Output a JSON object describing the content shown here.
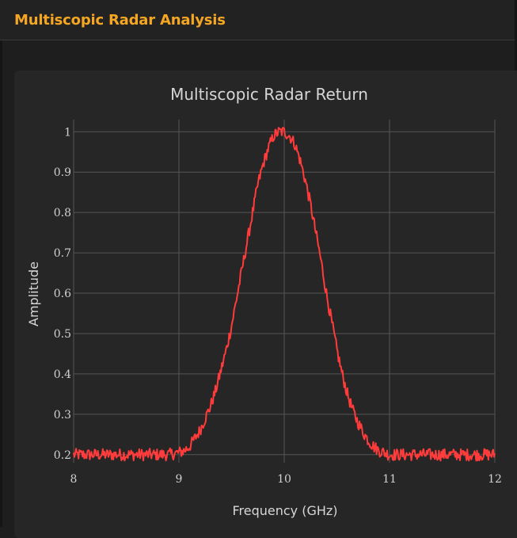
{
  "header": {
    "title": "Multiscopic Radar Analysis"
  },
  "colors": {
    "accent": "#f5a623",
    "line": "#ff3b3b",
    "grid": "#555555",
    "background": "#1e1e1e",
    "card": "#262626"
  },
  "chart_data": {
    "type": "line",
    "title": "Multiscopic Radar Return",
    "xlabel": "Frequency (GHz)",
    "ylabel": "Amplitude",
    "xlim": [
      8,
      12
    ],
    "ylim": [
      0.18,
      1.03
    ],
    "x_ticks": [
      8,
      9,
      10,
      11,
      12
    ],
    "y_ticks": [
      0.2,
      0.3,
      0.4,
      0.5,
      0.6,
      0.7,
      0.8,
      0.9,
      1
    ],
    "grid": true,
    "legend": "none",
    "series": [
      {
        "x": [
          8.0,
          8.1,
          8.2,
          8.3,
          8.4,
          8.5,
          8.6,
          8.7,
          8.8,
          8.9,
          9.0,
          9.05,
          9.1,
          9.15,
          9.2,
          9.25,
          9.3,
          9.35,
          9.4,
          9.45,
          9.5,
          9.55,
          9.6,
          9.65,
          9.7,
          9.75,
          9.8,
          9.85,
          9.9,
          9.95,
          10.0,
          10.05,
          10.1,
          10.15,
          10.2,
          10.25,
          10.3,
          10.35,
          10.4,
          10.45,
          10.5,
          10.55,
          10.6,
          10.65,
          10.7,
          10.75,
          10.8,
          10.85,
          10.9,
          10.95,
          11.0,
          11.1,
          11.2,
          11.3,
          11.4,
          11.5,
          11.6,
          11.7,
          11.8,
          11.9,
          12.0
        ],
        "y": [
          0.2,
          0.2,
          0.2,
          0.2,
          0.2,
          0.2,
          0.2,
          0.2,
          0.2,
          0.2,
          0.205,
          0.21,
          0.22,
          0.24,
          0.26,
          0.29,
          0.32,
          0.36,
          0.41,
          0.46,
          0.52,
          0.59,
          0.66,
          0.73,
          0.8,
          0.87,
          0.92,
          0.96,
          0.99,
          1.0,
          1.0,
          0.99,
          0.97,
          0.93,
          0.88,
          0.82,
          0.75,
          0.68,
          0.6,
          0.53,
          0.46,
          0.4,
          0.35,
          0.31,
          0.28,
          0.255,
          0.235,
          0.22,
          0.21,
          0.205,
          0.2,
          0.2,
          0.2,
          0.2,
          0.2,
          0.2,
          0.2,
          0.2,
          0.2,
          0.2,
          0.2
        ]
      }
    ]
  }
}
